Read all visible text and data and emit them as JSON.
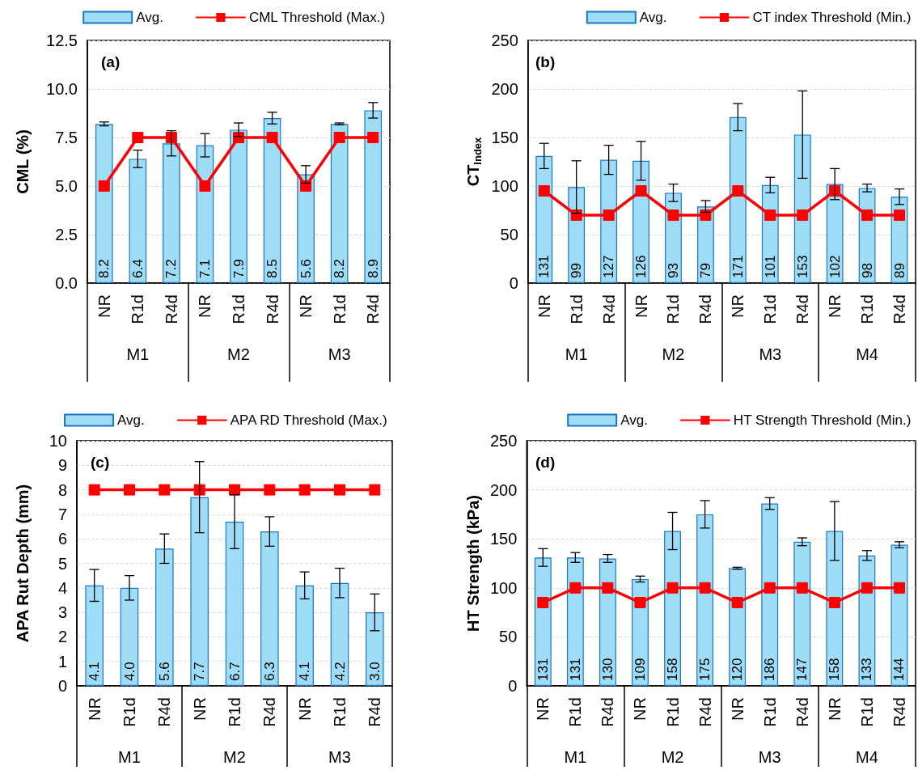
{
  "chart_data": [
    {
      "type": "bar",
      "title": "(a)",
      "ylabel": "CML (%)",
      "categories": [
        "NR",
        "R1d",
        "R4d",
        "NR",
        "R1d",
        "R4d",
        "NR",
        "R1d",
        "R4d"
      ],
      "annotations": [
        "M1",
        "M2",
        "M3"
      ],
      "series": [
        {
          "name": "Avg.",
          "color": "#9fdcf6",
          "values": [
            8.2,
            6.4,
            7.2,
            7.1,
            7.9,
            8.5,
            5.6,
            8.2,
            8.9
          ],
          "value_labels": [
            "8.2",
            "6.4",
            "7.2",
            "7.1",
            "7.9",
            "8.5",
            "5.6",
            "8.2",
            "8.9"
          ],
          "errors": [
            0.1,
            0.45,
            0.65,
            0.6,
            0.35,
            0.3,
            0.45,
            0.05,
            0.4
          ]
        },
        {
          "name": "CML Threshold (Max.)",
          "type": "line",
          "color": "#ff0000",
          "marker": "square",
          "values": [
            5,
            7.5,
            7.5,
            5,
            7.5,
            7.5,
            5,
            7.5,
            7.5
          ]
        }
      ],
      "ylim": [
        0,
        12.5
      ],
      "yticks": [
        {
          "value": 0,
          "label": "0.0"
        },
        {
          "value": 2.5,
          "label": "2.5"
        },
        {
          "value": 5,
          "label": "5.0"
        },
        {
          "value": 7.5,
          "label": "7.5"
        },
        {
          "value": 10,
          "label": "10.0"
        },
        {
          "value": 12.5,
          "label": "12.5"
        }
      ],
      "grid": "y",
      "legend": "top"
    },
    {
      "type": "bar",
      "title": "(b)",
      "ylabel": "CT$_{Index}$",
      "categories": [
        "NR",
        "R1d",
        "R4d",
        "NR",
        "R1d",
        "R4d",
        "NR",
        "R1d",
        "R4d",
        "NR",
        "R1d",
        "R4d"
      ],
      "annotations": [
        "M1",
        "M2",
        "M3",
        "M4"
      ],
      "series": [
        {
          "name": "Avg.",
          "color": "#9fdcf6",
          "values": [
            131,
            99,
            127,
            126,
            93,
            79,
            171,
            101,
            153,
            102,
            98,
            89
          ],
          "value_labels": [
            "131",
            "99",
            "127",
            "126",
            "93",
            "79",
            "171",
            "101",
            "153",
            "102",
            "98",
            "89"
          ],
          "errors": [
            13,
            27,
            15,
            20,
            9,
            6,
            14,
            8,
            45,
            16,
            4,
            8
          ]
        },
        {
          "name": "CT index Threshold (Min.)",
          "type": "line",
          "color": "#ff0000",
          "marker": "square",
          "values": [
            95,
            70,
            70,
            95,
            70,
            70,
            95,
            70,
            70,
            95,
            70,
            70
          ]
        }
      ],
      "ylim": [
        0,
        250
      ],
      "yticks": [
        0,
        50,
        100,
        150,
        200,
        250
      ],
      "grid": "y",
      "legend": "top"
    },
    {
      "type": "bar",
      "title": "(c)",
      "ylabel": "APA Rut Depth (mm)",
      "categories": [
        "NR",
        "R1d",
        "R4d",
        "NR",
        "R1d",
        "R4d",
        "NR",
        "R1d",
        "R4d"
      ],
      "annotations": [
        "M1",
        "M2",
        "M3"
      ],
      "series": [
        {
          "name": "Avg.",
          "color": "#9fdcf6",
          "values": [
            4.1,
            4.0,
            5.6,
            7.7,
            6.7,
            6.3,
            4.1,
            4.2,
            3.0
          ],
          "value_labels": [
            "4.1",
            "4.0",
            "5.6",
            "7.7",
            "6.7",
            "6.3",
            "4.1",
            "4.2",
            "3.0"
          ],
          "errors": [
            0.65,
            0.5,
            0.6,
            1.45,
            1.1,
            0.6,
            0.55,
            0.6,
            0.75
          ]
        },
        {
          "name": "APA RD Threshold (Max.)",
          "type": "line",
          "color": "#ff0000",
          "marker": "square",
          "values": [
            8,
            8,
            8,
            8,
            8,
            8,
            8,
            8,
            8
          ]
        }
      ],
      "ylim": [
        0,
        10
      ],
      "yticks": [
        0,
        1,
        2,
        3,
        4,
        5,
        6,
        7,
        8,
        9,
        10
      ],
      "grid": "y",
      "legend": "top"
    },
    {
      "type": "bar",
      "title": "(d)",
      "ylabel": "HT Strength (kPa)",
      "categories": [
        "NR",
        "R1d",
        "R4d",
        "NR",
        "R1d",
        "R4d",
        "NR",
        "R1d",
        "R4d",
        "NR",
        "R1d",
        "R4d"
      ],
      "annotations": [
        "M1",
        "M2",
        "M3",
        "M4"
      ],
      "series": [
        {
          "name": "Avg.",
          "color": "#9fdcf6",
          "values": [
            131,
            131,
            130,
            109,
            158,
            175,
            120,
            186,
            147,
            158,
            133,
            144
          ],
          "value_labels": [
            "131",
            "131",
            "130",
            "109",
            "158",
            "175",
            "120",
            "186",
            "147",
            "158",
            "133",
            "144"
          ],
          "errors": [
            9,
            5,
            4,
            3,
            19,
            14,
            1,
            6,
            4,
            30,
            5,
            3
          ]
        },
        {
          "name": "HT Strength Threshold (Min.)",
          "type": "line",
          "color": "#ff0000",
          "marker": "square",
          "values": [
            85,
            100,
            100,
            85,
            100,
            100,
            85,
            100,
            100,
            85,
            100,
            100
          ]
        }
      ],
      "ylim": [
        0,
        250
      ],
      "yticks": [
        0,
        50,
        100,
        150,
        200,
        250
      ],
      "grid": "y",
      "legend": "top"
    }
  ]
}
